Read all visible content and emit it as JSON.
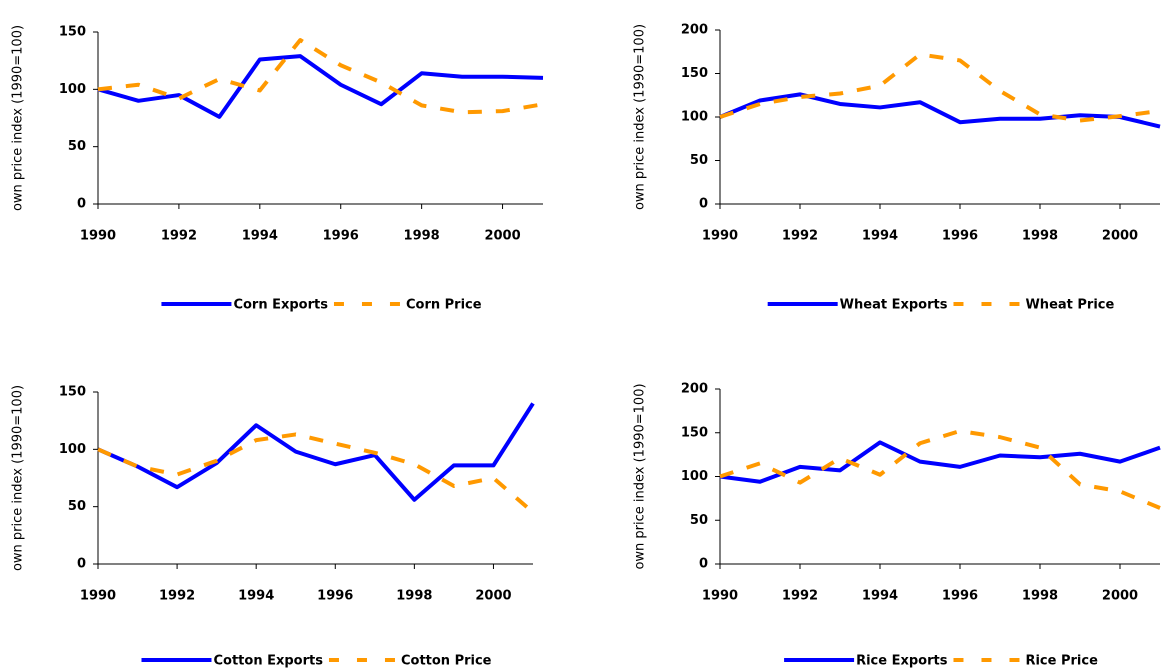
{
  "chart_data": [
    {
      "type": "line",
      "ylabel": "own price index (1990=100)",
      "x": [
        1990,
        1991,
        1992,
        1993,
        1994,
        1995,
        1996,
        1997,
        1998,
        1999,
        2000,
        2001
      ],
      "xlim": [
        1990,
        2001
      ],
      "xticks": [
        1990,
        1992,
        1994,
        1996,
        1998,
        2000
      ],
      "ylim": [
        0,
        150
      ],
      "yticks": [
        0,
        50,
        100,
        150
      ],
      "series": [
        {
          "name": "Corn Exports",
          "color": "#0000ff",
          "style": "solid",
          "values": [
            100,
            90,
            95,
            76,
            126,
            129,
            104,
            87,
            114,
            111,
            111,
            110
          ]
        },
        {
          "name": "Corn Price",
          "color": "#ff9900",
          "style": "dashed",
          "values": [
            100,
            104,
            92,
            109,
            99,
            143,
            121,
            106,
            86,
            80,
            81,
            87
          ]
        }
      ]
    },
    {
      "type": "line",
      "ylabel": "own price index (1990=100)",
      "x": [
        1990,
        1991,
        1992,
        1993,
        1994,
        1995,
        1996,
        1997,
        1998,
        1999,
        2000,
        2001
      ],
      "xlim": [
        1990,
        2001
      ],
      "xticks": [
        1990,
        1992,
        1994,
        1996,
        1998,
        2000
      ],
      "ylim": [
        0,
        200
      ],
      "yticks": [
        0,
        50,
        100,
        150,
        200
      ],
      "series": [
        {
          "name": "Wheat Exports",
          "color": "#0000ff",
          "style": "solid",
          "values": [
            100,
            119,
            126,
            115,
            111,
            117,
            94,
            98,
            98,
            102,
            100,
            89
          ]
        },
        {
          "name": "Wheat Price",
          "color": "#ff9900",
          "style": "dashed",
          "values": [
            100,
            115,
            123,
            127,
            136,
            172,
            165,
            130,
            103,
            96,
            101,
            107
          ]
        }
      ]
    },
    {
      "type": "line",
      "ylabel": "own price index (1990=100)",
      "x": [
        1990,
        1991,
        1992,
        1993,
        1994,
        1995,
        1996,
        1997,
        1998,
        1999,
        2000,
        2001
      ],
      "xlim": [
        1990,
        2001
      ],
      "xticks": [
        1990,
        1992,
        1994,
        1996,
        1998,
        2000
      ],
      "ylim": [
        0,
        150
      ],
      "yticks": [
        0,
        50,
        100,
        150
      ],
      "series": [
        {
          "name": "Cotton Exports",
          "color": "#0000ff",
          "style": "solid",
          "values": [
            100,
            85,
            67,
            88,
            121,
            98,
            87,
            95,
            56,
            86,
            86,
            140
          ]
        },
        {
          "name": "Cotton Price",
          "color": "#ff9900",
          "style": "dashed",
          "values": [
            100,
            85,
            78,
            90,
            108,
            113,
            105,
            97,
            87,
            68,
            75,
            45
          ]
        }
      ]
    },
    {
      "type": "line",
      "ylabel": "own price index (1990=100)",
      "x": [
        1990,
        1991,
        1992,
        1993,
        1994,
        1995,
        1996,
        1997,
        1998,
        1999,
        2000,
        2001
      ],
      "xlim": [
        1990,
        2001
      ],
      "xticks": [
        1990,
        1992,
        1994,
        1996,
        1998,
        2000
      ],
      "ylim": [
        0,
        200
      ],
      "yticks": [
        0,
        50,
        100,
        150,
        200
      ],
      "series": [
        {
          "name": "Rice Exports",
          "color": "#0000ff",
          "style": "solid",
          "values": [
            100,
            94,
            111,
            107,
            139,
            117,
            111,
            124,
            122,
            126,
            117,
            133
          ]
        },
        {
          "name": "Rice Price",
          "color": "#ff9900",
          "style": "dashed",
          "values": [
            100,
            115,
            93,
            121,
            102,
            138,
            152,
            145,
            133,
            91,
            83,
            64
          ]
        }
      ]
    }
  ]
}
